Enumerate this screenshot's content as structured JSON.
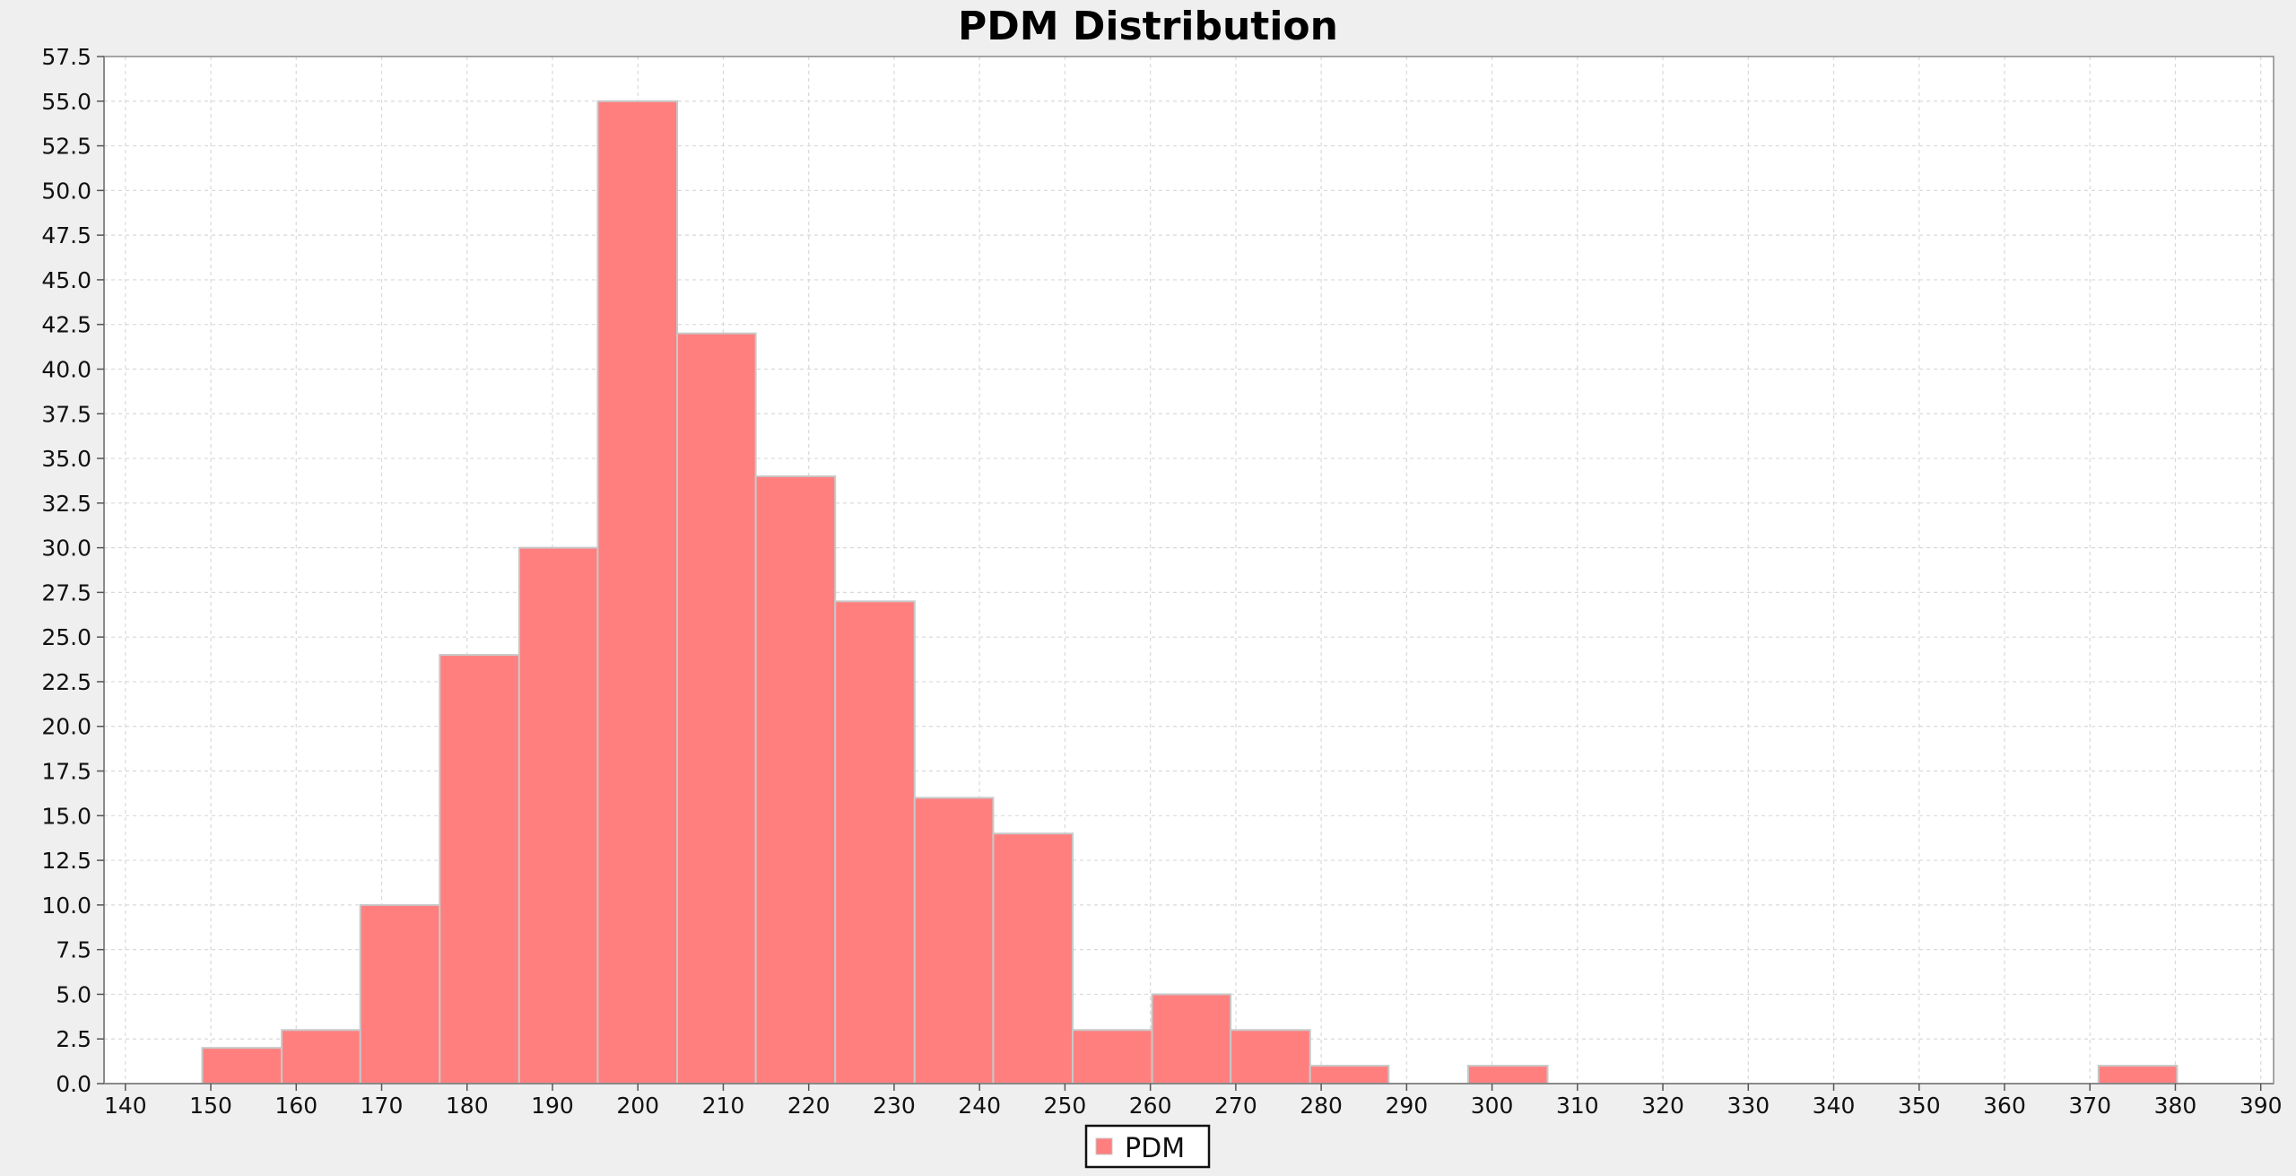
{
  "chart_data": {
    "type": "bar",
    "title": "PDM Distribution",
    "xlabel": "",
    "ylabel": "",
    "xlim": [
      137.5,
      391.5
    ],
    "ylim": [
      0,
      57.5
    ],
    "x_ticks": [
      140,
      150,
      160,
      170,
      180,
      190,
      200,
      210,
      220,
      230,
      240,
      250,
      260,
      270,
      280,
      290,
      300,
      310,
      320,
      330,
      340,
      350,
      360,
      370,
      380,
      390
    ],
    "y_ticks": [
      0,
      2.5,
      5,
      7.5,
      10,
      12.5,
      15,
      17.5,
      20,
      22.5,
      25,
      27.5,
      30,
      32.5,
      35,
      37.5,
      40,
      42.5,
      45,
      47.5,
      50,
      52.5,
      55,
      57.5
    ],
    "y_tick_labels": [
      "0.0",
      "2.5",
      "5.0",
      "7.5",
      "10.0",
      "12.5",
      "15.0",
      "17.5",
      "20.0",
      "22.5",
      "25.0",
      "27.5",
      "30.0",
      "32.5",
      "35.0",
      "37.5",
      "40.0",
      "42.5",
      "45.0",
      "47.5",
      "50.0",
      "52.5",
      "55.0",
      "57.5"
    ],
    "grid": true,
    "legend_position": "bottom-center",
    "series": [
      {
        "name": "PDM",
        "color": "#ff7f7f",
        "edge_color": "#c8c8c8",
        "bins": [
          {
            "start": 149,
            "end": 158.3,
            "count": 2
          },
          {
            "start": 158.3,
            "end": 167.5,
            "count": 3
          },
          {
            "start": 167.5,
            "end": 176.8,
            "count": 10
          },
          {
            "start": 176.8,
            "end": 186.1,
            "count": 24
          },
          {
            "start": 186.1,
            "end": 195.3,
            "count": 30
          },
          {
            "start": 195.3,
            "end": 204.6,
            "count": 55
          },
          {
            "start": 204.6,
            "end": 213.8,
            "count": 42
          },
          {
            "start": 213.8,
            "end": 223.1,
            "count": 34
          },
          {
            "start": 223.1,
            "end": 232.4,
            "count": 27
          },
          {
            "start": 232.4,
            "end": 241.6,
            "count": 16
          },
          {
            "start": 241.6,
            "end": 250.9,
            "count": 14
          },
          {
            "start": 250.9,
            "end": 260.2,
            "count": 3
          },
          {
            "start": 260.2,
            "end": 269.4,
            "count": 5
          },
          {
            "start": 269.4,
            "end": 278.7,
            "count": 3
          },
          {
            "start": 278.7,
            "end": 287.9,
            "count": 1
          },
          {
            "start": 287.9,
            "end": 297.2,
            "count": 0
          },
          {
            "start": 297.2,
            "end": 306.5,
            "count": 1
          },
          {
            "start": 371,
            "end": 380.2,
            "count": 1
          }
        ]
      }
    ]
  }
}
